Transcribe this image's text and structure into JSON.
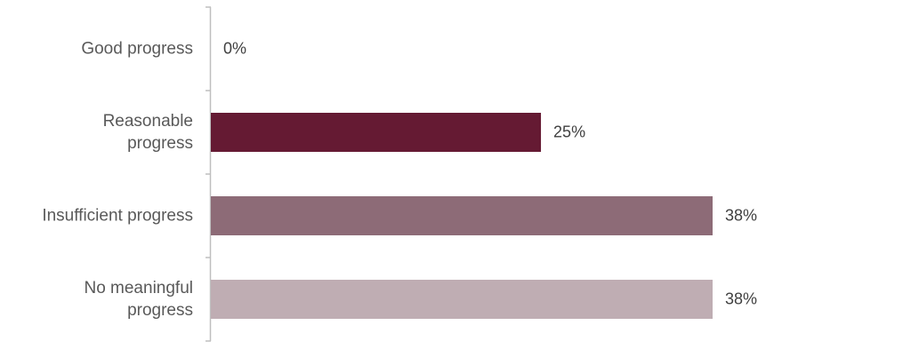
{
  "chart_data": {
    "type": "bar",
    "orientation": "horizontal",
    "categories": [
      "Good progress",
      "Reasonable\nprogress",
      "Insufficient progress",
      "No meaningful\nprogress"
    ],
    "values": [
      0,
      25,
      38,
      38
    ],
    "value_labels": [
      "0%",
      "25%",
      "38%",
      "38%"
    ],
    "colors": [
      "#651a33",
      "#651a33",
      "#8d6b77",
      "#bfadb3"
    ]
  }
}
